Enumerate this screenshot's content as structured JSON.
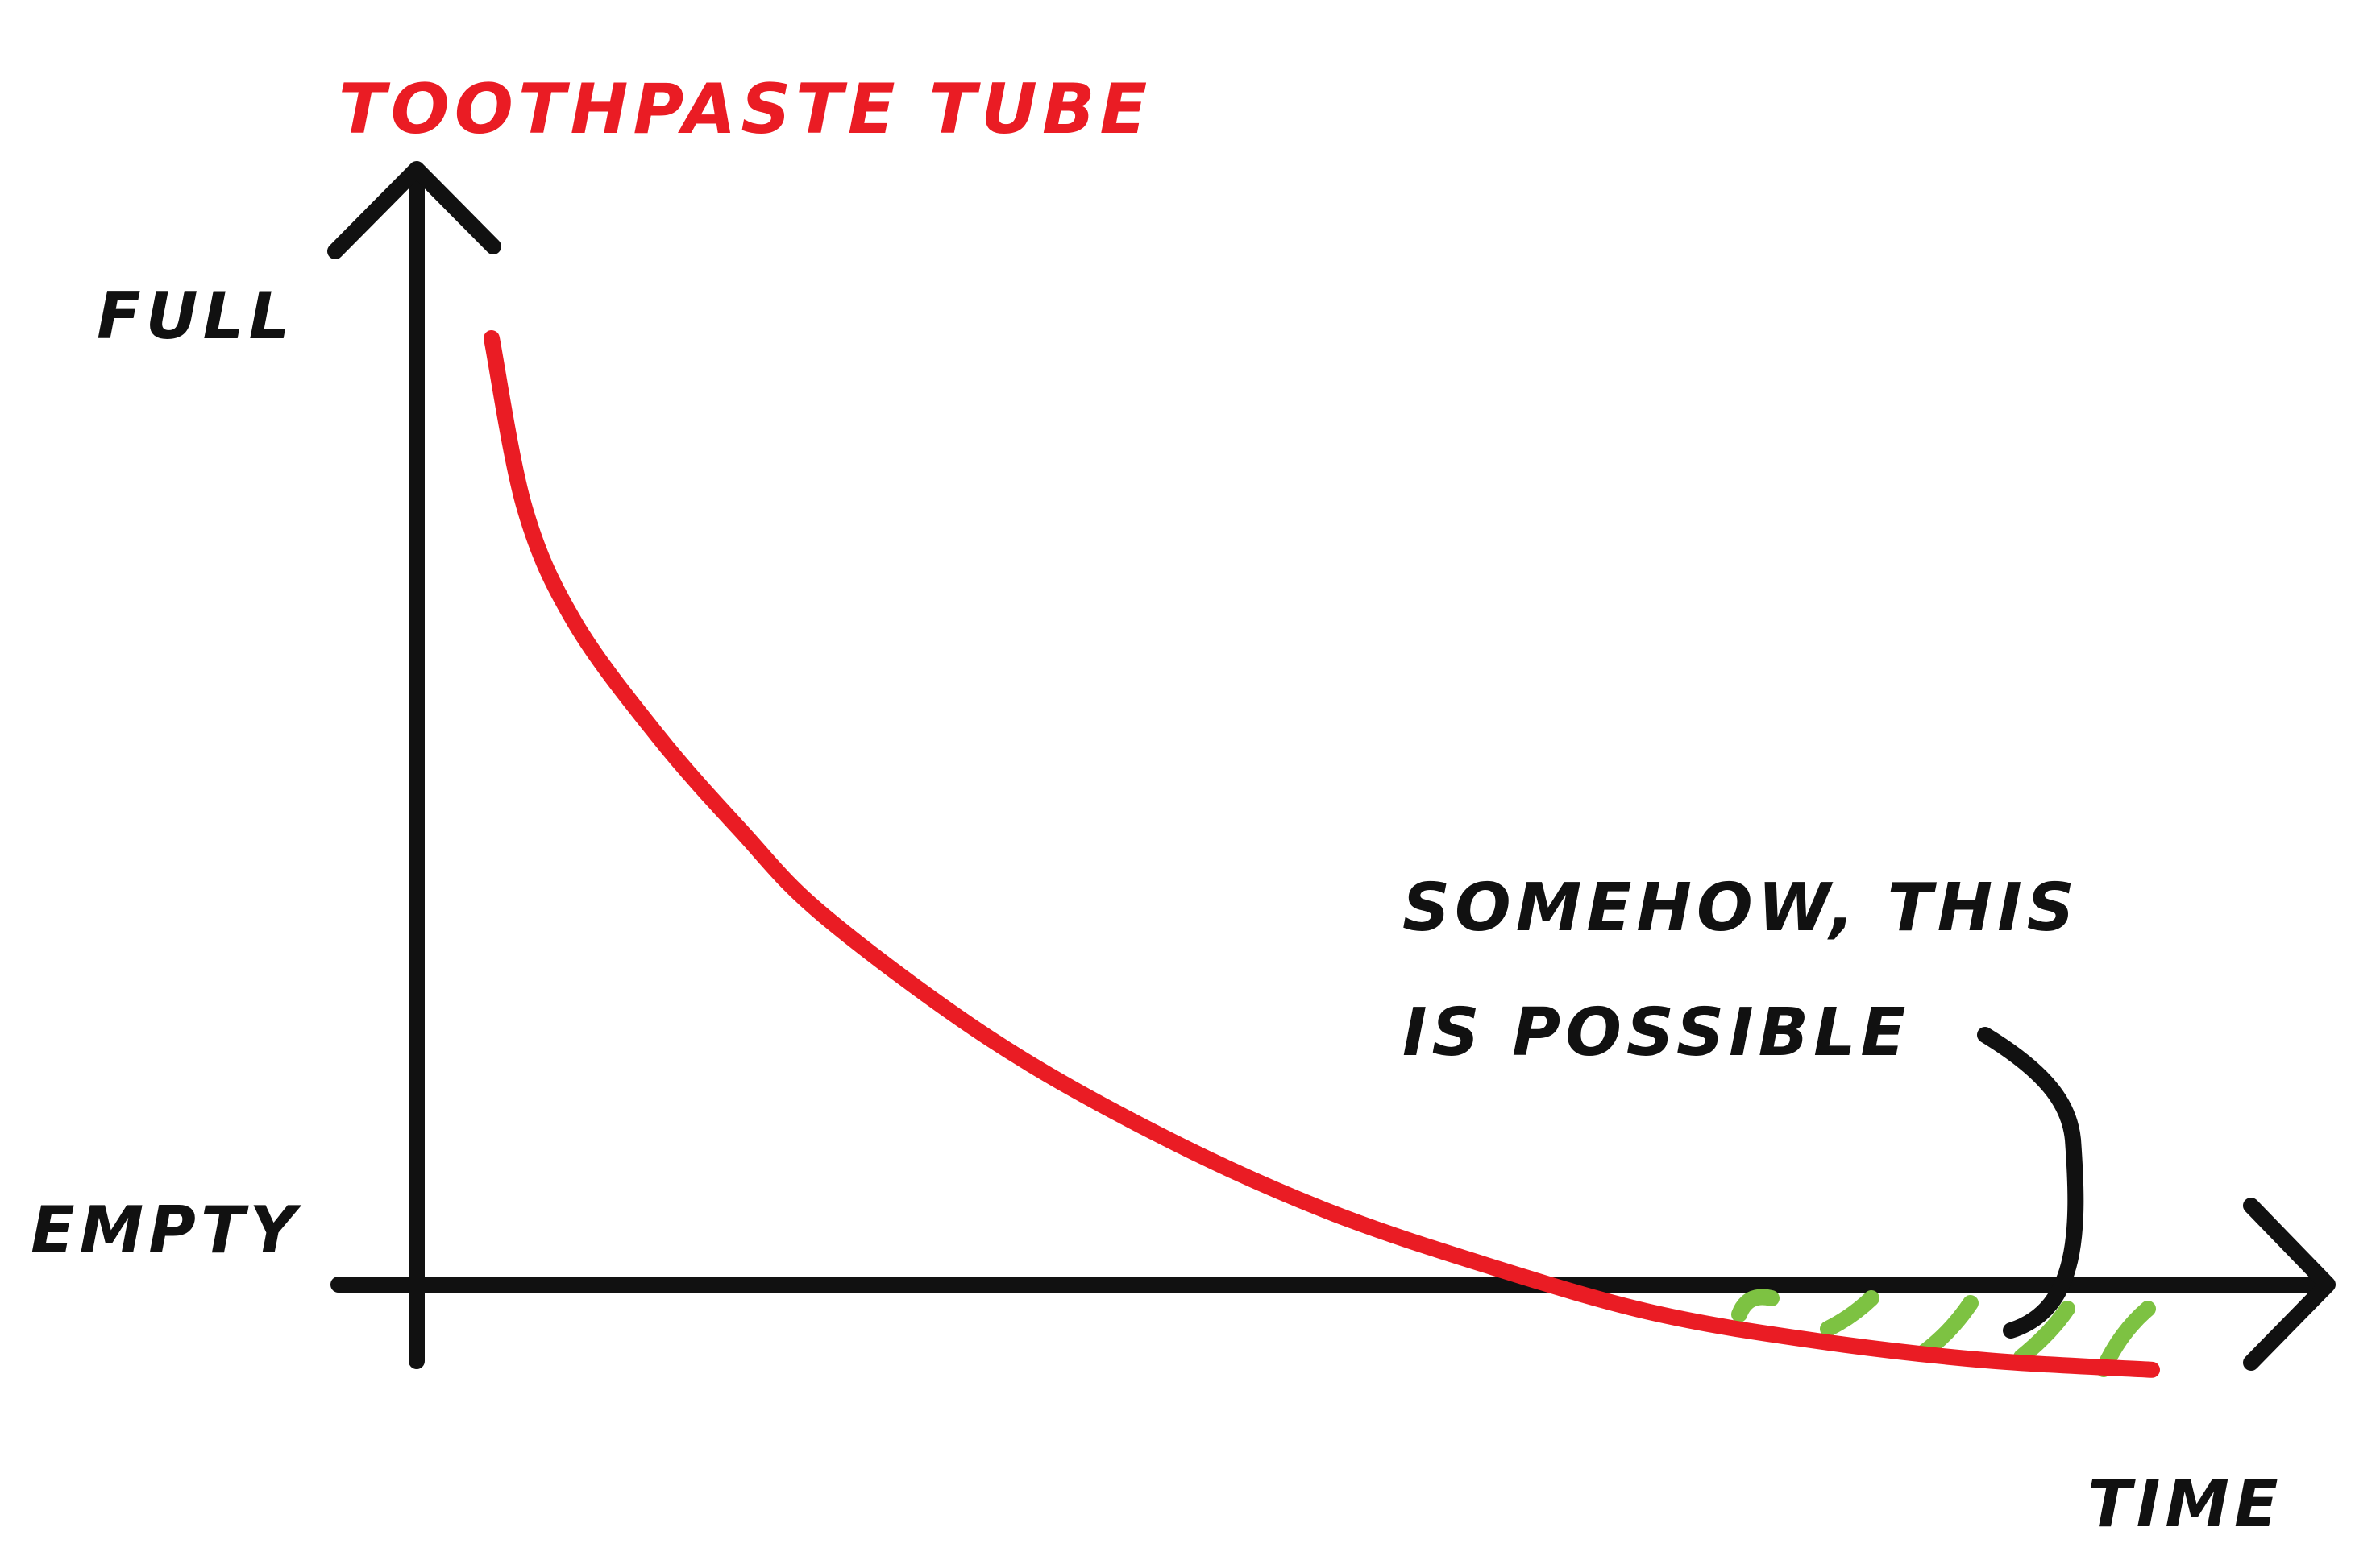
{
  "chart_data": {
    "type": "line",
    "title": "TOOTHPASTE TUBE",
    "xlabel": "TIME",
    "y_labels": {
      "top": "FULL",
      "bottom": "EMPTY"
    },
    "series": [
      {
        "color": "#ea1c24",
        "points": [
          [
            0.0,
            1.0
          ],
          [
            0.02,
            0.82
          ],
          [
            0.05,
            0.7
          ],
          [
            0.1,
            0.58
          ],
          [
            0.15,
            0.48
          ],
          [
            0.2,
            0.39
          ],
          [
            0.3,
            0.26
          ],
          [
            0.4,
            0.16
          ],
          [
            0.5,
            0.08
          ],
          [
            0.6,
            0.02
          ],
          [
            0.7,
            -0.03
          ],
          [
            0.8,
            -0.06
          ],
          [
            0.9,
            -0.08
          ],
          [
            1.0,
            -0.09
          ]
        ]
      }
    ],
    "hatch_color": "#7dc242",
    "annotation": {
      "lines": [
        "SOMEHOW, THIS",
        "IS POSSIBLE"
      ]
    },
    "axis_color": "#111111"
  }
}
